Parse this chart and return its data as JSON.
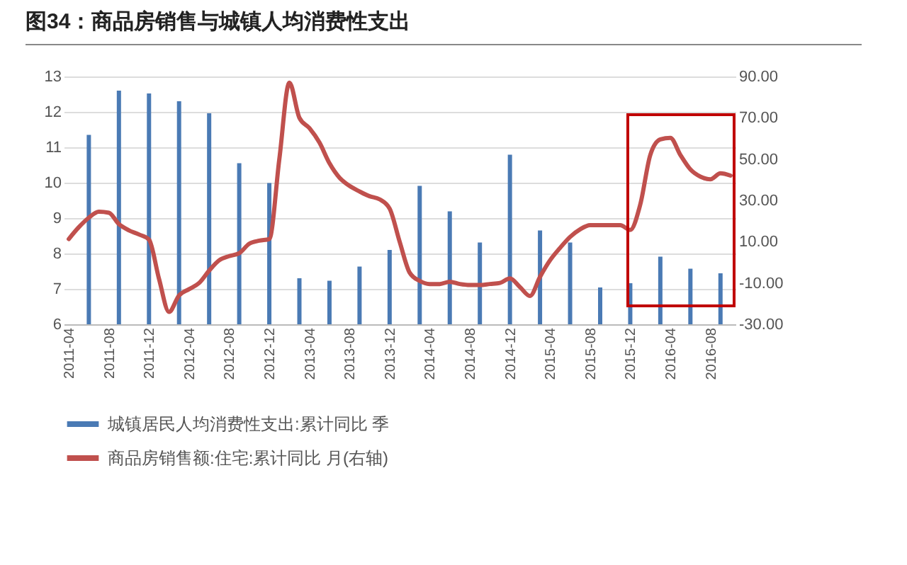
{
  "chart_data": {
    "type": "bar",
    "title": "图34：商品房销售与城镇人均消费性支出",
    "categories": [
      "2011-04",
      null,
      null,
      null,
      "2011-08",
      null,
      null,
      null,
      "2011-12",
      null,
      null,
      null,
      "2012-04",
      null,
      null,
      null,
      "2012-08",
      null,
      null,
      null,
      "2012-12",
      null,
      null,
      null,
      "2013-04",
      null,
      null,
      null,
      "2013-08",
      null,
      null,
      null,
      "2013-12",
      null,
      null,
      null,
      "2014-04",
      null,
      null,
      null,
      "2014-08",
      null,
      null,
      null,
      "2014-12",
      null,
      null,
      null,
      "2015-04",
      null,
      null,
      null,
      "2015-08",
      null,
      null,
      null,
      "2015-12",
      null,
      null,
      null,
      "2016-04",
      null,
      null,
      null,
      "2016-08",
      null,
      null
    ],
    "series": [
      {
        "name": "城镇居民人均消费性支出:累计同比 季",
        "color": "#4a7ab4",
        "values": [
          null,
          null,
          11.35,
          null,
          null,
          12.6,
          null,
          null,
          12.52,
          null,
          null,
          12.3,
          null,
          null,
          11.96,
          null,
          null,
          10.55,
          null,
          null,
          9.99,
          null,
          null,
          7.3,
          null,
          null,
          7.23,
          null,
          null,
          7.63,
          null,
          null,
          8.1,
          null,
          null,
          9.91,
          null,
          null,
          9.19,
          null,
          null,
          8.31,
          null,
          null,
          10.79,
          null,
          null,
          8.65,
          null,
          null,
          8.31,
          null,
          null,
          7.04,
          null,
          null,
          7.16,
          null,
          null,
          7.91,
          null,
          null,
          7.57,
          null,
          null,
          7.44,
          null
        ]
      },
      {
        "name": "商品房销售额:住宅:累计同比 月(右轴)",
        "type": "line",
        "axis": "y2",
        "color": "#c0504d",
        "values": [
          11.3,
          17,
          21.6,
          24.5,
          24,
          18.5,
          15.5,
          13.5,
          11,
          -8,
          -24,
          -16,
          -13,
          -10,
          -4,
          1,
          3,
          4.4,
          9,
          10.5,
          11.3,
          50,
          87,
          70,
          65,
          58,
          48,
          41,
          37,
          34.3,
          32,
          30.5,
          26,
          10,
          -5,
          -9,
          -10.5,
          -10.5,
          -9.4,
          -10.5,
          -11,
          -11,
          -10.5,
          -10,
          -7.8,
          -12,
          -16.3,
          -7,
          1,
          7,
          12.3,
          16,
          18,
          18,
          18,
          18,
          15.7,
          28,
          52,
          59.5,
          60.3,
          52,
          45,
          41.5,
          40.2,
          43.1,
          42
        ]
      }
    ],
    "ylim": [
      6,
      13
    ],
    "yticks": [
      6,
      7,
      8,
      9,
      10,
      11,
      12,
      13
    ],
    "y2lim": [
      -30,
      90
    ],
    "y2ticks": [
      {
        "value": -30,
        "label": "-30.00"
      },
      {
        "value": -10,
        "label": "-10.00"
      },
      {
        "value": 10,
        "label": "10.00"
      },
      {
        "value": 30,
        "label": "30.00"
      },
      {
        "value": 50,
        "label": "50.00"
      },
      {
        "value": 70,
        "label": "70.00"
      },
      {
        "value": 90,
        "label": "90.00"
      }
    ],
    "grid": "y",
    "legend": "bottom"
  }
}
